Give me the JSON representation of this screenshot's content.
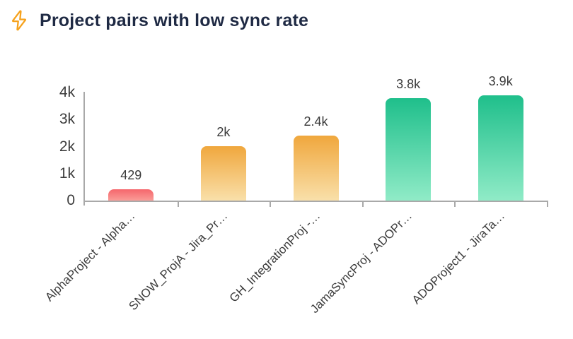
{
  "header": {
    "title": "Project pairs with low sync rate",
    "icon": "lightning-bolt-icon",
    "icon_color": "#F6A21D",
    "title_color": "#1F2A44"
  },
  "chart_data": {
    "type": "bar",
    "title": "Project pairs with low sync rate",
    "categories": [
      "AlphaProject - Alpha…",
      "SNOW_ProjA - Jira_Pr…",
      "GH_IntegrationProj -…",
      "JamaSyncProj - ADOPr…",
      "ADOProject1 - JiraTa…"
    ],
    "values": [
      429,
      2000,
      2400,
      3800,
      3900
    ],
    "value_labels": [
      "429",
      "2k",
      "2.4k",
      "3.8k",
      "3.9k"
    ],
    "bar_color_keys": [
      "red",
      "orange",
      "orange",
      "green",
      "green"
    ],
    "colors": {
      "red": [
        "#F5666C",
        "#FA9C97"
      ],
      "orange": [
        "#F0A73D",
        "#F9E0AA"
      ],
      "green": [
        "#1FBF8B",
        "#90EBC7"
      ]
    },
    "xlabel": "",
    "ylabel": "",
    "ylim": [
      0,
      4000
    ],
    "yticks": [
      {
        "value": 0,
        "label": "0"
      },
      {
        "value": 1000,
        "label": "1k"
      },
      {
        "value": 2000,
        "label": "2k"
      },
      {
        "value": 3000,
        "label": "3k"
      },
      {
        "value": 4000,
        "label": "4k"
      }
    ],
    "grid": false,
    "legend": false,
    "bar_gradient_direction": "top-dark-to-bottom-light",
    "x_label_rotation_deg": -45,
    "axis_color": "#A9A9A9",
    "label_color": "#3C3C3C"
  }
}
